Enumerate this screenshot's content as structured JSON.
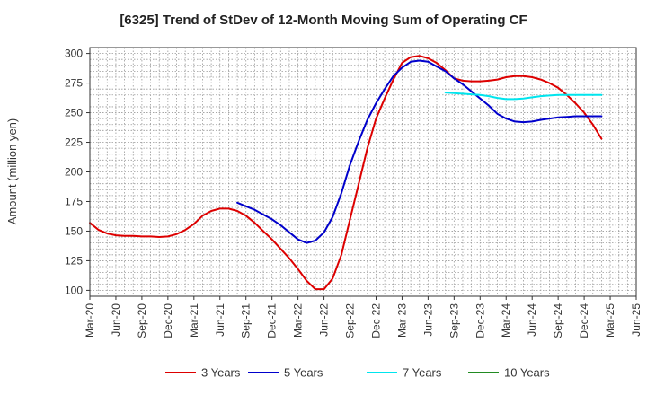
{
  "chart_data": {
    "type": "line",
    "title": "[6325]  Trend of StDev of 12-Month Moving Sum of Operating CF",
    "ylabel": "Amount (million yen)",
    "xlabel": "",
    "ylim": [
      95,
      305
    ],
    "y_ticks": [
      100,
      125,
      150,
      175,
      200,
      225,
      250,
      275,
      300
    ],
    "x_start": "2020-03",
    "x_end": "2025-06",
    "x_ticks": [
      "Mar-20",
      "Jun-20",
      "Sep-20",
      "Dec-20",
      "Mar-21",
      "Jun-21",
      "Sep-21",
      "Dec-21",
      "Mar-22",
      "Jun-22",
      "Sep-22",
      "Dec-22",
      "Mar-23",
      "Jun-23",
      "Sep-23",
      "Dec-23",
      "Mar-24",
      "Jun-24",
      "Sep-24",
      "Dec-24",
      "Mar-25",
      "Jun-25"
    ],
    "grid": true,
    "legend_position": "bottom",
    "series": [
      {
        "name": "3 Years",
        "color": "#dd0000",
        "points": [
          [
            "2020-03",
            157
          ],
          [
            "2020-04",
            151
          ],
          [
            "2020-05",
            148
          ],
          [
            "2020-06",
            146.5
          ],
          [
            "2020-07",
            146
          ],
          [
            "2020-08",
            146
          ],
          [
            "2020-09",
            145.5
          ],
          [
            "2020-10",
            145.5
          ],
          [
            "2020-11",
            145
          ],
          [
            "2020-12",
            145.5
          ],
          [
            "2020-13",
            147.5
          ],
          [
            "2021-02",
            151
          ],
          [
            "2021-03",
            156
          ],
          [
            "2021-04",
            163
          ],
          [
            "2021-05",
            167
          ],
          [
            "2021-06",
            169
          ],
          [
            "2021-07",
            169
          ],
          [
            "2021-08",
            167
          ],
          [
            "2021-09",
            163
          ],
          [
            "2021-10",
            157
          ],
          [
            "2021-11",
            150
          ],
          [
            "2021-12",
            143
          ],
          [
            "2022-01",
            135
          ],
          [
            "2022-02",
            127
          ],
          [
            "2022-03",
            118
          ],
          [
            "2022-04",
            108
          ],
          [
            "2022-05",
            101
          ],
          [
            "2022-06",
            101
          ],
          [
            "2022-07",
            110
          ],
          [
            "2022-08",
            130
          ],
          [
            "2022-09",
            160
          ],
          [
            "2022-10",
            190
          ],
          [
            "2022-11",
            220
          ],
          [
            "2022-12",
            245
          ],
          [
            "2023-01",
            262
          ],
          [
            "2023-02",
            278
          ],
          [
            "2023-03",
            292
          ],
          [
            "2023-04",
            297
          ],
          [
            "2023-05",
            298
          ],
          [
            "2023-06",
            296
          ],
          [
            "2023-07",
            292
          ],
          [
            "2023-08",
            286
          ],
          [
            "2023-09",
            279
          ],
          [
            "2023-10",
            277
          ],
          [
            "2023-11",
            276.5
          ],
          [
            "2023-12",
            276.5
          ],
          [
            "2024-01",
            277
          ],
          [
            "2024-02",
            278
          ],
          [
            "2024-03",
            280
          ],
          [
            "2024-04",
            281
          ],
          [
            "2024-05",
            281
          ],
          [
            "2024-06",
            280
          ],
          [
            "2024-07",
            278
          ],
          [
            "2024-08",
            275
          ],
          [
            "2024-09",
            271
          ],
          [
            "2024-10",
            265
          ],
          [
            "2024-11",
            258
          ],
          [
            "2024-12",
            250
          ],
          [
            "2025-01",
            240
          ],
          [
            "2025-02",
            228
          ]
        ]
      },
      {
        "name": "5 Years",
        "color": "#0000cc",
        "points": [
          [
            "2021-08",
            174
          ],
          [
            "2021-09",
            171
          ],
          [
            "2021-10",
            168
          ],
          [
            "2021-11",
            164
          ],
          [
            "2021-12",
            160
          ],
          [
            "2022-01",
            155
          ],
          [
            "2022-02",
            149
          ],
          [
            "2022-03",
            143
          ],
          [
            "2022-04",
            140
          ],
          [
            "2022-05",
            142
          ],
          [
            "2022-06",
            149
          ],
          [
            "2022-07",
            162
          ],
          [
            "2022-08",
            182
          ],
          [
            "2022-09",
            206
          ],
          [
            "2022-10",
            226
          ],
          [
            "2022-11",
            244
          ],
          [
            "2022-12",
            258
          ],
          [
            "2023-01",
            270
          ],
          [
            "2023-02",
            281
          ],
          [
            "2023-03",
            288
          ],
          [
            "2023-04",
            293
          ],
          [
            "2023-05",
            294
          ],
          [
            "2023-06",
            293
          ],
          [
            "2023-07",
            289
          ],
          [
            "2023-08",
            285
          ],
          [
            "2023-09",
            279
          ],
          [
            "2023-10",
            274
          ],
          [
            "2023-11",
            268
          ],
          [
            "2023-12",
            262
          ],
          [
            "2024-01",
            256
          ],
          [
            "2024-02",
            249
          ],
          [
            "2024-03",
            245
          ],
          [
            "2024-04",
            242.5
          ],
          [
            "2024-05",
            242
          ],
          [
            "2024-06",
            242.5
          ],
          [
            "2024-07",
            244
          ],
          [
            "2024-08",
            245
          ],
          [
            "2024-09",
            246
          ],
          [
            "2024-10",
            246.5
          ],
          [
            "2024-11",
            247
          ],
          [
            "2024-12",
            247
          ],
          [
            "2025-01",
            247
          ],
          [
            "2025-02",
            247
          ]
        ]
      },
      {
        "name": "7 Years",
        "color": "#00e5ee",
        "points": [
          [
            "2023-08",
            267
          ],
          [
            "2023-09",
            266.5
          ],
          [
            "2023-10",
            266
          ],
          [
            "2023-11",
            265.5
          ],
          [
            "2023-12",
            265
          ],
          [
            "2024-01",
            264
          ],
          [
            "2024-02",
            262.5
          ],
          [
            "2024-03",
            261.5
          ],
          [
            "2024-04",
            261.5
          ],
          [
            "2024-05",
            262
          ],
          [
            "2024-06",
            263
          ],
          [
            "2024-07",
            264
          ],
          [
            "2024-08",
            264.5
          ],
          [
            "2024-09",
            265
          ],
          [
            "2024-10",
            265
          ],
          [
            "2024-11",
            265
          ],
          [
            "2024-12",
            265
          ],
          [
            "2025-01",
            265
          ],
          [
            "2025-02",
            265
          ]
        ]
      },
      {
        "name": "10 Years",
        "color": "#228b22",
        "points": []
      }
    ]
  }
}
